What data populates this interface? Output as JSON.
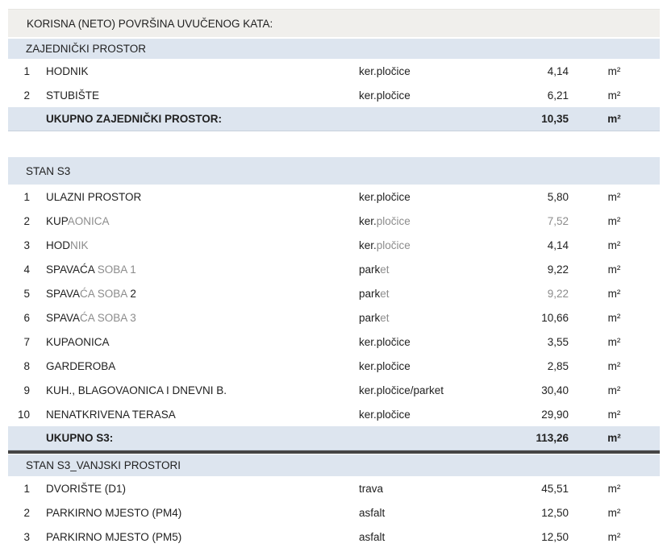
{
  "page_title": "KORISNA (NETO) POVRŠINA UVUČENOG KATA:",
  "unit": "m²",
  "colors": {
    "title_band_bg": "#f0efec",
    "section_band_bg": "#dde5ef",
    "text_dark": "#212121",
    "text_faded": "#8c8c8c",
    "thick_rule": "#454545",
    "total_row_border": "#c7d0dc"
  },
  "sections": [
    {
      "name": "ZAJEDNIČKI PROSTOR",
      "rows": [
        {
          "num": "1",
          "name": [
            [
              "HODNIK",
              "d"
            ]
          ],
          "material": [
            [
              "ker.pločice",
              "d"
            ]
          ],
          "value": "4,14",
          "vshade": "d",
          "unit": "m²"
        },
        {
          "num": "2",
          "name": [
            [
              "STUBIŠTE",
              "d"
            ]
          ],
          "material": [
            [
              "ker.pločice",
              "d"
            ]
          ],
          "value": "6,21",
          "vshade": "d",
          "unit": "m²"
        }
      ],
      "total": {
        "label": "UKUPNO ZAJEDNIČKI PROSTOR:",
        "value": "10,35",
        "unit": "m²"
      },
      "thick_rule_after": false,
      "gap_after": 32
    },
    {
      "name": "STAN S3",
      "rows": [
        {
          "num": "1",
          "name": [
            [
              "ULAZNI PROSTOR",
              "d"
            ]
          ],
          "material": [
            [
              "ker.pločice",
              "d"
            ]
          ],
          "value": "5,80",
          "vshade": "d",
          "unit": "m²"
        },
        {
          "num": "2",
          "name": [
            [
              "KUP",
              "d"
            ],
            [
              "AONICA",
              "g"
            ]
          ],
          "material": [
            [
              "ker.",
              "d"
            ],
            [
              "pločice",
              "g"
            ]
          ],
          "value": "7,52",
          "vshade": "g",
          "unit": "m²"
        },
        {
          "num": "3",
          "name": [
            [
              "HOD",
              "d"
            ],
            [
              "NIK",
              "g"
            ]
          ],
          "material": [
            [
              "ker.",
              "d"
            ],
            [
              "pločice",
              "g"
            ]
          ],
          "value": "4,14",
          "vshade": "d",
          "unit": "m²"
        },
        {
          "num": "4",
          "name": [
            [
              "SPAVAĆA ",
              "d"
            ],
            [
              "SOBA 1",
              "g"
            ]
          ],
          "material": [
            [
              "park",
              "d"
            ],
            [
              "et",
              "g"
            ]
          ],
          "value": "9,22",
          "vshade": "d",
          "unit": "m²"
        },
        {
          "num": "5",
          "name": [
            [
              "SPAVA",
              "d"
            ],
            [
              "ĆA SOBA ",
              "g"
            ],
            [
              "2",
              "d"
            ]
          ],
          "material": [
            [
              "park",
              "d"
            ],
            [
              "et",
              "g"
            ]
          ],
          "value": "9,22",
          "vshade": "g",
          "unit": "m²"
        },
        {
          "num": "6",
          "name": [
            [
              "SPAVA",
              "d"
            ],
            [
              "ĆA SOBA 3",
              "g"
            ]
          ],
          "material": [
            [
              "park",
              "d"
            ],
            [
              "et",
              "g"
            ]
          ],
          "value": "10,66",
          "vshade": "d",
          "unit": "m²"
        },
        {
          "num": "7",
          "name": [
            [
              "KUPAONICA",
              "d"
            ]
          ],
          "material": [
            [
              "ker.pločice",
              "d"
            ]
          ],
          "value": "3,55",
          "vshade": "d",
          "unit": "m²"
        },
        {
          "num": "8",
          "name": [
            [
              "GARDEROBA",
              "d"
            ]
          ],
          "material": [
            [
              "ker.pločice",
              "d"
            ]
          ],
          "value": "2,85",
          "vshade": "d",
          "unit": "m²"
        },
        {
          "num": "9",
          "name": [
            [
              "KUH., BLAGOVAONICA I DNEVNI B.",
              "d"
            ]
          ],
          "material": [
            [
              "ker.pločice/parket",
              "d"
            ]
          ],
          "value": "30,40",
          "vshade": "d",
          "unit": "m²"
        },
        {
          "num": "10",
          "name": [
            [
              "NENATKRIVENA TERASA",
              "d"
            ]
          ],
          "material": [
            [
              "ker.pločice",
              "d"
            ]
          ],
          "value": "29,90",
          "vshade": "d",
          "unit": "m²"
        }
      ],
      "total": {
        "label": "UKUPNO S3:",
        "value": "113,26",
        "unit": "m²"
      },
      "thick_rule_after": true,
      "gap_after": 0
    },
    {
      "name": "STAN S3_VANJSKI PROSTORI",
      "rows": [
        {
          "num": "1",
          "name": [
            [
              "DVORIŠTE (D1)",
              "d"
            ]
          ],
          "material": [
            [
              "trava",
              "d"
            ]
          ],
          "value": "45,51",
          "vshade": "d",
          "unit": "m²"
        },
        {
          "num": "2",
          "name": [
            [
              "PARKIRNO MJESTO (PM4)",
              "d"
            ]
          ],
          "material": [
            [
              "asfalt",
              "d"
            ]
          ],
          "value": "12,50",
          "vshade": "d",
          "unit": "m²"
        },
        {
          "num": "3",
          "name": [
            [
              "PARKIRNO MJESTO (PM5)",
              "d"
            ]
          ],
          "material": [
            [
              "asfalt",
              "d"
            ]
          ],
          "value": "12,50",
          "vshade": "d",
          "unit": "m²"
        }
      ],
      "total": null,
      "thick_rule_after": false,
      "gap_after": 0
    }
  ]
}
